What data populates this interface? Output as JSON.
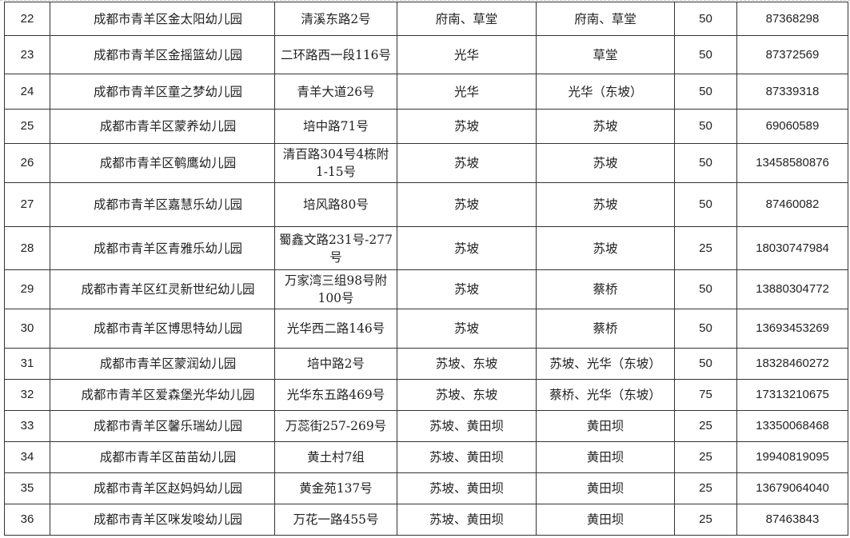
{
  "rows": [
    {
      "no": "22",
      "name": "成都市青羊区金太阳幼儿园",
      "address": "清溪东路2号",
      "area1": "府南、草堂",
      "area2": "府南、草堂",
      "capacity": "50",
      "phone": "87368298"
    },
    {
      "no": "23",
      "name": "成都市青羊区金摇篮幼儿园",
      "address": "二环路西一段116号",
      "area1": "光华",
      "area2": "草堂",
      "capacity": "50",
      "phone": "87372569"
    },
    {
      "no": "24",
      "name": "成都市青羊区童之梦幼儿园",
      "address": "青羊大道26号",
      "area1": "光华",
      "area2": "光华（东坡）",
      "capacity": "50",
      "phone": "87339318"
    },
    {
      "no": "25",
      "name": "成都市青羊区蒙养幼儿园",
      "address": "培中路71号",
      "area1": "苏坡",
      "area2": "苏坡",
      "capacity": "50",
      "phone": "69060589"
    },
    {
      "no": "26",
      "name": "成都市青羊区鹌鹰幼儿园",
      "address": "清百路304号4栋附1-15号",
      "area1": "苏坡",
      "area2": "苏坡",
      "capacity": "50",
      "phone": "13458580876"
    },
    {
      "no": "27",
      "name": "成都市青羊区嘉慧乐幼儿园",
      "address": "培风路80号",
      "area1": "苏坡",
      "area2": "苏坡",
      "capacity": "50",
      "phone": "87460082"
    },
    {
      "no": "28",
      "name": "成都市青羊区青雅乐幼儿园",
      "address": "蜀鑫文路231号-277号",
      "area1": "苏坡",
      "area2": "苏坡",
      "capacity": "25",
      "phone": "18030747984"
    },
    {
      "no": "29",
      "name": "成都市青羊区红灵新世纪幼儿园",
      "address": "万家湾三组98号附100号",
      "area1": "苏坡",
      "area2": "蔡桥",
      "capacity": "50",
      "phone": "13880304772"
    },
    {
      "no": "30",
      "name": "成都市青羊区博思特幼儿园",
      "address": "光华西二路146号",
      "area1": "苏坡",
      "area2": "蔡桥",
      "capacity": "50",
      "phone": "13693453269"
    },
    {
      "no": "31",
      "name": "成都市青羊区蒙润幼儿园",
      "address": "培中路2号",
      "area1": "苏坡、东坡",
      "area2": "苏坡、光华（东坡）",
      "capacity": "50",
      "phone": "18328460272"
    },
    {
      "no": "32",
      "name": "成都市青羊区爱森堡光华幼儿园",
      "address": "光华东五路469号",
      "area1": "苏坡、东坡",
      "area2": "蔡桥、光华（东坡）",
      "capacity": "75",
      "phone": "17313210675"
    },
    {
      "no": "33",
      "name": "成都市青羊区馨乐瑞幼儿园",
      "address": "万蕊街257-269号",
      "area1": "苏坡、黄田坝",
      "area2": "黄田坝",
      "capacity": "25",
      "phone": "13350068468"
    },
    {
      "no": "34",
      "name": "成都市青羊区苗苗幼儿园",
      "address": "黄土村7组",
      "area1": "苏坡、黄田坝",
      "area2": "黄田坝",
      "capacity": "25",
      "phone": "19940819095"
    },
    {
      "no": "35",
      "name": "成都市青羊区赵妈妈幼儿园",
      "address": "黄金苑137号",
      "area1": "苏坡、黄田坝",
      "area2": "黄田坝",
      "capacity": "25",
      "phone": "13679064040"
    },
    {
      "no": "36",
      "name": "成都市青羊区咪发唆幼儿园",
      "address": "万花一路455号",
      "area1": "苏坡、黄田坝",
      "area2": "黄田坝",
      "capacity": "25",
      "phone": "87463843"
    }
  ]
}
